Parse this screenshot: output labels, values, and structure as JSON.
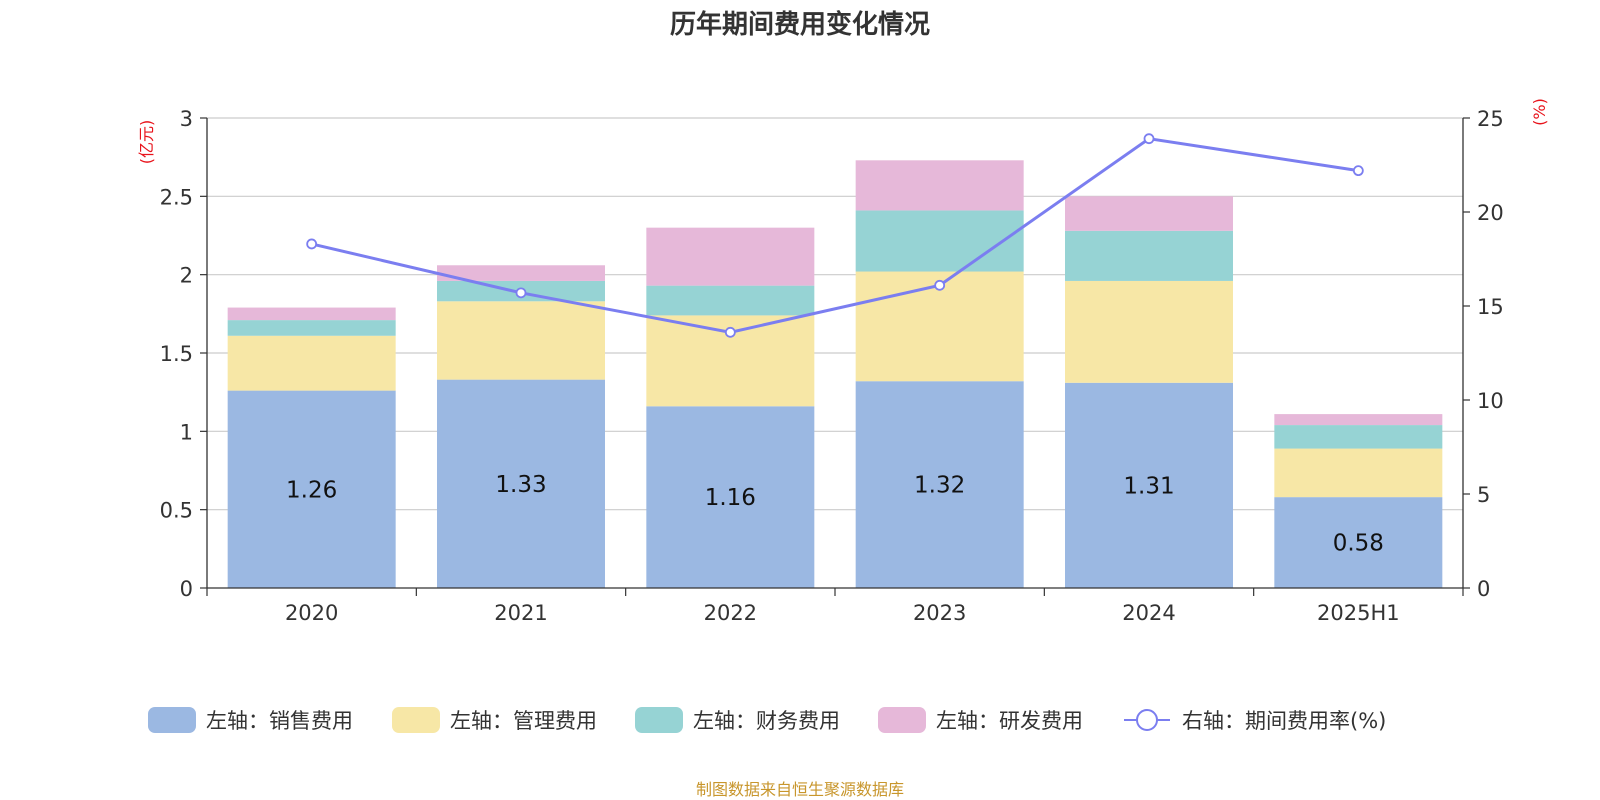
{
  "title": "历年期间费用变化情况",
  "source_note": "制图数据来自恒生聚源数据库",
  "chart_data": {
    "type": "bar",
    "stacked": true,
    "title": "历年期间费用变化情况",
    "categories": [
      "2020",
      "2021",
      "2022",
      "2023",
      "2024",
      "2025H1"
    ],
    "left_axis": {
      "unit_label": "(亿元)",
      "ylim": [
        0,
        3
      ],
      "ticks": [
        "0",
        "0.5",
        "1",
        "1.5",
        "2",
        "2.5",
        "3"
      ]
    },
    "right_axis": {
      "unit_label": "(%)",
      "ylim": [
        0,
        25
      ],
      "ticks": [
        "0",
        "5",
        "10",
        "15",
        "20",
        "25"
      ]
    },
    "grid": true,
    "legend_position": "bottom",
    "series": [
      {
        "name": "左轴：销售费用",
        "axis": "left",
        "type": "bar",
        "color": "#9bb8e2",
        "values": [
          1.26,
          1.33,
          1.16,
          1.32,
          1.31,
          0.58
        ],
        "data_labels": [
          "1.26",
          "1.33",
          "1.16",
          "1.32",
          "1.31",
          "0.58"
        ]
      },
      {
        "name": "左轴：管理费用",
        "axis": "left",
        "type": "bar",
        "color": "#f7e7a6",
        "values": [
          0.35,
          0.5,
          0.58,
          0.7,
          0.65,
          0.31
        ]
      },
      {
        "name": "左轴：财务费用",
        "axis": "left",
        "type": "bar",
        "color": "#96d3d4",
        "values": [
          0.1,
          0.13,
          0.19,
          0.39,
          0.32,
          0.15
        ]
      },
      {
        "name": "左轴：研发费用",
        "axis": "left",
        "type": "bar",
        "color": "#e6b8d9",
        "values": [
          0.08,
          0.1,
          0.37,
          0.32,
          0.22,
          0.07
        ]
      },
      {
        "name": "右轴：期间费用率(%)",
        "axis": "right",
        "type": "line",
        "color": "#7b7ef0",
        "values": [
          18.3,
          15.7,
          13.6,
          16.1,
          23.9,
          22.2
        ]
      }
    ]
  }
}
